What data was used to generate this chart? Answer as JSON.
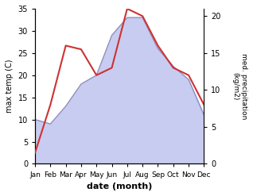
{
  "months": [
    "Jan",
    "Feb",
    "Mar",
    "Apr",
    "May",
    "Jun",
    "Jul",
    "Aug",
    "Sep",
    "Oct",
    "Nov",
    "Dec"
  ],
  "month_indices": [
    0,
    1,
    2,
    3,
    4,
    5,
    6,
    7,
    8,
    9,
    10,
    11
  ],
  "max_temp": [
    10,
    9,
    13,
    18,
    20,
    29,
    33,
    33,
    26,
    22,
    19,
    11
  ],
  "precipitation": [
    1.5,
    8,
    16,
    15.5,
    12,
    13,
    21,
    20,
    16,
    13,
    12,
    8
  ],
  "temp_color": "#9090c0",
  "temp_fill_color": "#c8ccf0",
  "precip_color": "#cc3333",
  "temp_ylim": [
    0,
    35
  ],
  "precip_ylim": [
    0,
    21
  ],
  "precip_yticks": [
    0,
    5,
    10,
    15,
    20
  ],
  "temp_yticks": [
    0,
    5,
    10,
    15,
    20,
    25,
    30,
    35
  ],
  "ylabel_left": "max temp (C)",
  "ylabel_right": "med. precipitation\n(kg/m2)",
  "xlabel": "date (month)",
  "background_color": "#ffffff",
  "fig_width": 3.18,
  "fig_height": 2.47,
  "dpi": 100
}
